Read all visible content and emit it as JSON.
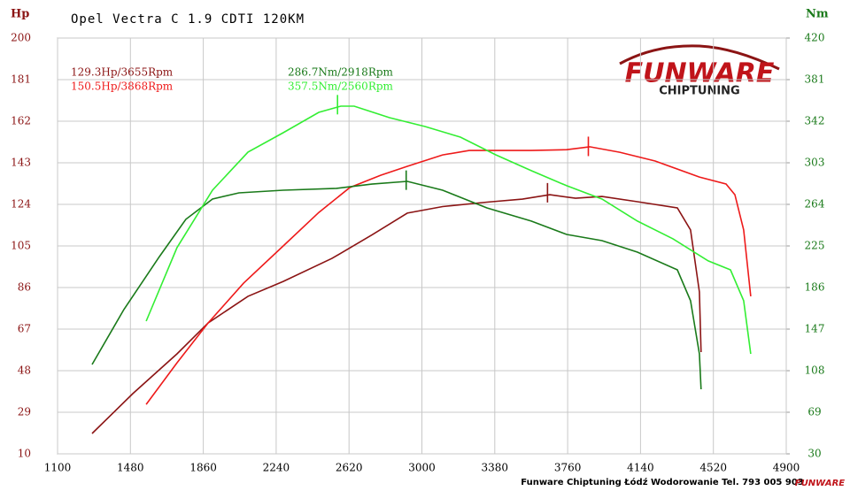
{
  "chart_data": {
    "type": "line",
    "title": "Opel Vectra C 1.9 CDTI 120KM",
    "y_label": "Hp",
    "y2_label": "Nm",
    "footer": "Funware Chiptuning Łódź Wodorowanie Tel. 793 005 903",
    "logo": {
      "brand": "FUNWARE",
      "tagline": "CHIPTUNING"
    },
    "xlim": [
      1100,
      4900
    ],
    "xticks": [
      1100,
      1480,
      1860,
      2240,
      2620,
      3000,
      3380,
      3760,
      4140,
      4520,
      4900
    ],
    "ylim": [
      10,
      200
    ],
    "yticks": [
      10,
      29,
      48,
      67,
      86,
      105,
      124,
      143,
      162,
      181,
      200
    ],
    "y2lim": [
      30,
      420
    ],
    "y2ticks": [
      30,
      69,
      108,
      147,
      186,
      225,
      264,
      303,
      342,
      381,
      420
    ],
    "grid": true,
    "series": [
      {
        "color": "#8b1414",
        "axis": "y",
        "x": [
          1280,
          1492,
          1723,
          1885,
          2093,
          2277,
          2531,
          2739,
          2924,
          3108,
          3339,
          3524,
          3667,
          3801,
          3939,
          4124,
          4332,
          4401,
          4447,
          4456
        ],
        "values": [
          19.3,
          37.5,
          55.7,
          69.8,
          82,
          88.8,
          99.3,
          110,
          120,
          123,
          125,
          126.4,
          128.4,
          126.8,
          127.6,
          125.2,
          122.4,
          112.3,
          84,
          56.5
        ],
        "peak": {
          "x": 3655,
          "value": 129.3,
          "label": "129.3Hp/3655Rpm"
        }
      },
      {
        "color": "#ee1a1a",
        "axis": "y",
        "x": [
          1562,
          1723,
          1885,
          2070,
          2277,
          2462,
          2624,
          2785,
          2924,
          3108,
          3247,
          3570,
          3755,
          3875,
          4032,
          4216,
          4447,
          4586,
          4632,
          4678,
          4715
        ],
        "values": [
          32.6,
          51.6,
          69.8,
          88,
          105,
          120.3,
          131.7,
          137.3,
          141.4,
          146.6,
          148.6,
          148.6,
          149,
          150.3,
          147.8,
          143.8,
          136.5,
          133.3,
          128.4,
          112.3,
          82
        ],
        "peak": {
          "x": 3868,
          "value": 150.5,
          "label": "150.5Hp/3868Rpm"
        }
      },
      {
        "color": "#1a7a1a",
        "axis": "y2",
        "x": [
          1280,
          1446,
          1631,
          1769,
          1908,
          2046,
          2277,
          2554,
          2739,
          2924,
          3108,
          3339,
          3570,
          3755,
          3939,
          4124,
          4332,
          4401,
          4447,
          4456
        ],
        "values": [
          113.8,
          165.3,
          215,
          250,
          269,
          274.8,
          277.3,
          279,
          283,
          285.6,
          277.3,
          260.7,
          248.3,
          235.8,
          230,
          219.2,
          202.6,
          173.6,
          123.8,
          90.6
        ],
        "peak": {
          "x": 2918,
          "value": 286.7,
          "label": "286.7Nm/2918Rpm"
        }
      },
      {
        "color": "#33ee33",
        "axis": "y2",
        "x": [
          1562,
          1723,
          1908,
          2093,
          2277,
          2462,
          2577,
          2647,
          2831,
          3016,
          3201,
          3385,
          3570,
          3755,
          3939,
          4124,
          4309,
          4493,
          4609,
          4678,
          4715
        ],
        "values": [
          154.5,
          223.4,
          277.3,
          313,
          331.2,
          350.3,
          356.1,
          356.1,
          345.3,
          337,
          327.1,
          310.5,
          295.6,
          281.5,
          269,
          248.3,
          231.7,
          211,
          202.6,
          173.6,
          123.8
        ],
        "peak": {
          "x": 2560,
          "value": 357.5,
          "label": "357.5Nm/2560Rpm"
        }
      }
    ]
  }
}
